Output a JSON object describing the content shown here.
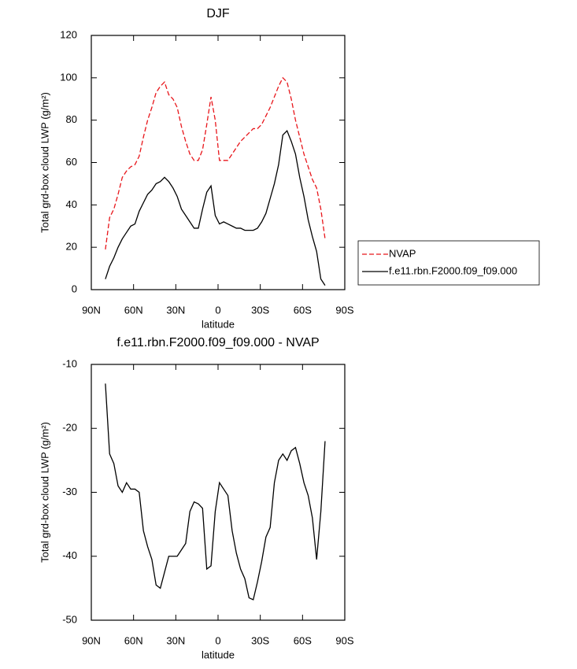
{
  "chart_data": [
    {
      "type": "line",
      "title": "DJF",
      "xlabel": "latitude",
      "ylabel": "Total grd-box cloud LWP (g/m²)",
      "x": [
        80,
        77,
        74,
        71,
        68,
        65,
        62,
        59,
        56,
        53,
        50,
        47,
        44,
        41,
        38,
        35,
        32,
        29,
        26,
        23,
        20,
        17,
        14,
        11,
        8,
        5,
        2,
        -1,
        -4,
        -7,
        -10,
        -13,
        -16,
        -19,
        -22,
        -25,
        -28,
        -31,
        -34,
        -37,
        -40,
        -43,
        -46,
        -49,
        -52,
        -55,
        -58,
        -61,
        -64,
        -67,
        -70,
        -73,
        -76
      ],
      "series": [
        {
          "name": "NVAP",
          "color": "#e8161b",
          "style": "dashed",
          "values": [
            19,
            34,
            38,
            45,
            53,
            56,
            58,
            59,
            63,
            72,
            80,
            86,
            93,
            96,
            98,
            92,
            90,
            86,
            77,
            70,
            64,
            61,
            61,
            66,
            78,
            91,
            80,
            61,
            61,
            61,
            64,
            67,
            70,
            72,
            74,
            76,
            76,
            78,
            82,
            86,
            91,
            96,
            100,
            98,
            90,
            80,
            72,
            64,
            58,
            52,
            48,
            38,
            24
          ]
        },
        {
          "name": "f.e11.rbn.F2000.f09_f09.000",
          "color": "#000000",
          "style": "solid",
          "values": [
            5,
            11,
            15,
            20,
            24,
            27,
            30,
            31,
            37,
            41,
            45,
            47,
            50,
            51,
            53,
            51,
            48,
            44,
            38,
            35,
            32,
            29,
            29,
            38,
            46,
            49,
            35,
            31,
            32,
            31,
            30,
            29,
            29,
            28,
            28,
            28,
            29,
            32,
            36,
            43,
            50,
            59,
            73,
            75,
            70,
            64,
            53,
            44,
            33,
            25,
            18,
            5,
            2
          ]
        }
      ],
      "xlim": [
        90,
        -90
      ],
      "xticks": [
        {
          "value": 90,
          "label": "90N"
        },
        {
          "value": 60,
          "label": "60N"
        },
        {
          "value": 30,
          "label": "30N"
        },
        0,
        {
          "value": -30,
          "label": "30S"
        },
        {
          "value": -60,
          "label": "60S"
        },
        {
          "value": -90,
          "label": "90S"
        }
      ],
      "ylim": [
        0,
        120
      ],
      "yticks": [
        0,
        20,
        40,
        60,
        80,
        100,
        120
      ],
      "legend": "right"
    },
    {
      "type": "line",
      "title": "f.e11.rbn.F2000.f09_f09.000 - NVAP",
      "xlabel": "latitude",
      "ylabel": "Total grd-box cloud LWP (g/m²)",
      "x": [
        80,
        77,
        74,
        71,
        68,
        65,
        62,
        59,
        56,
        53,
        50,
        47,
        44,
        41,
        38,
        35,
        32,
        29,
        26,
        23,
        20,
        17,
        14,
        11,
        8,
        5,
        2,
        -1,
        -4,
        -7,
        -10,
        -13,
        -16,
        -19,
        -22,
        -25,
        -28,
        -31,
        -34,
        -37,
        -40,
        -43,
        -46,
        -49,
        -52,
        -55,
        -58,
        -61,
        -64,
        -67,
        -70,
        -73,
        -76
      ],
      "values": [
        -13,
        -24,
        -25.5,
        -29,
        -30,
        -28.5,
        -29.5,
        -29.5,
        -30,
        -36,
        -38.5,
        -40.5,
        -44.5,
        -45,
        -42.5,
        -40,
        -40,
        -40,
        -39,
        -38,
        -33,
        -31.5,
        -31.8,
        -32.5,
        -42,
        -41.5,
        -33,
        -28.5,
        -29.5,
        -30.5,
        -36,
        -39.5,
        -42,
        -43.5,
        -46.5,
        -46.8,
        -44,
        -40.8,
        -37,
        -35.5,
        -28.5,
        -25,
        -24,
        -25,
        -23.5,
        -23,
        -25.5,
        -28.5,
        -30.5,
        -34,
        -40.5,
        -33,
        -22
      ],
      "color": "#000000",
      "xlim": [
        90,
        -90
      ],
      "xticks": [
        {
          "value": 90,
          "label": "90N"
        },
        {
          "value": 60,
          "label": "60N"
        },
        {
          "value": 30,
          "label": "30N"
        },
        0,
        {
          "value": -30,
          "label": "30S"
        },
        {
          "value": -60,
          "label": "60S"
        },
        {
          "value": -90,
          "label": "90S"
        }
      ],
      "ylim": [
        -50,
        -10
      ],
      "yticks": [
        -50,
        -40,
        -30,
        -20,
        -10
      ]
    }
  ]
}
